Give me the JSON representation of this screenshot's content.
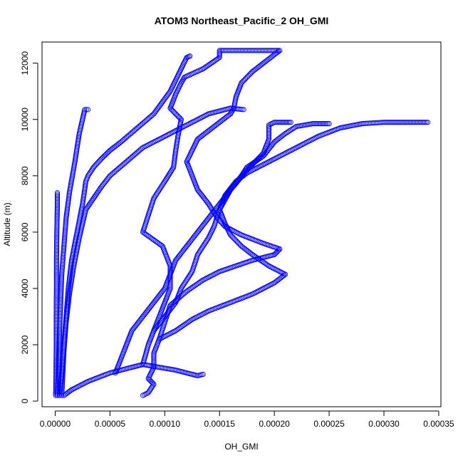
{
  "chart_data": {
    "type": "scatter",
    "title": "ATOM3 Northeast_Pacific_2 OH_GMI",
    "xlabel": "OH_GMI",
    "ylabel": "Altitude (m)",
    "xlim": [
      -1.2e-05,
      0.000352
    ],
    "ylim": [
      -200,
      12750
    ],
    "xticks": [
      0,
      5e-05,
      0.0001,
      0.00015,
      0.0002,
      0.00025,
      0.0003,
      0.00035
    ],
    "xtick_labels": [
      "0.00000",
      "0.00005",
      "0.00010",
      "0.00015",
      "0.00020",
      "0.00025",
      "0.00030",
      "0.00035"
    ],
    "yticks": [
      0,
      2000,
      4000,
      6000,
      8000,
      10000,
      12000
    ],
    "ytick_labels": [
      "0",
      "2000",
      "4000",
      "6000",
      "8000",
      "10000",
      "12000"
    ],
    "marker": "open-circle",
    "color": "#0000ff",
    "grid": false,
    "series": [
      {
        "name": "",
        "points": [
          [
            5e-07,
            200
          ],
          [
            8e-07,
            1000
          ],
          [
            1e-06,
            2000
          ],
          [
            1e-06,
            3000
          ],
          [
            1.2e-06,
            4000
          ],
          [
            1.2e-06,
            5000
          ],
          [
            1.5e-06,
            6000
          ],
          [
            2e-06,
            7000
          ],
          [
            2e-06,
            7400
          ]
        ]
      },
      {
        "name": "",
        "points": [
          [
            2e-06,
            200
          ],
          [
            3e-06,
            1200
          ],
          [
            4e-06,
            2500
          ],
          [
            5e-06,
            3500
          ],
          [
            6e-06,
            4500
          ],
          [
            8e-06,
            5500
          ],
          [
            1e-05,
            6500
          ],
          [
            1.3e-05,
            7400
          ],
          [
            1.8e-05,
            8500
          ],
          [
            2.2e-05,
            9500
          ],
          [
            2.7e-05,
            10350
          ],
          [
            3e-05,
            10350
          ]
        ]
      },
      {
        "name": "",
        "points": [
          [
            4e-06,
            200
          ],
          [
            6e-06,
            1000
          ],
          [
            8e-06,
            2000
          ],
          [
            1e-05,
            3000
          ],
          [
            1.2e-05,
            4000
          ],
          [
            1.5e-05,
            5000
          ],
          [
            2e-05,
            6000
          ],
          [
            2.5e-05,
            7000
          ],
          [
            2.8e-05,
            7800
          ],
          [
            3e-05,
            8000
          ],
          [
            3.5e-05,
            8300
          ],
          [
            4.2e-05,
            8600
          ],
          [
            5e-05,
            8900
          ],
          [
            6e-05,
            9200
          ],
          [
            7.5e-05,
            9700
          ],
          [
            9e-05,
            10200
          ],
          [
            0.000105,
            11000
          ],
          [
            0.000115,
            11800
          ],
          [
            0.00012,
            12200
          ],
          [
            0.000123,
            12250
          ]
        ]
      },
      {
        "name": "",
        "points": [
          [
            6e-06,
            200
          ],
          [
            7e-06,
            1000
          ],
          [
            8e-06,
            1800
          ],
          [
            1e-05,
            2800
          ],
          [
            1.3e-05,
            3800
          ],
          [
            1.7e-05,
            4800
          ],
          [
            2.2e-05,
            5800
          ],
          [
            2.8e-05,
            6800
          ],
          [
            3.5e-05,
            7200
          ],
          [
            4.2e-05,
            7600
          ],
          [
            5e-05,
            8000
          ],
          [
            6.5e-05,
            8500
          ],
          [
            8e-05,
            9000
          ],
          [
            0.0001,
            9400
          ],
          [
            0.00012,
            9800
          ],
          [
            0.00014,
            10200
          ],
          [
            0.00016,
            10400
          ],
          [
            0.000172,
            10350
          ]
        ]
      },
      {
        "name": "",
        "points": [
          [
            8e-06,
            200
          ],
          [
            1.5e-05,
            400
          ],
          [
            3e-05,
            700
          ],
          [
            5e-05,
            1000
          ],
          [
            8e-05,
            1300
          ],
          [
            0.00011,
            1100
          ],
          [
            0.00013,
            900
          ],
          [
            0.000135,
            950
          ]
        ]
      },
      {
        "name": "",
        "points": [
          [
            8e-05,
            200
          ],
          [
            8.5e-05,
            300
          ],
          [
            9e-05,
            600
          ],
          [
            8.5e-05,
            800
          ],
          [
            9e-05,
            1200
          ],
          [
            9e-05,
            1700
          ],
          [
            9.5e-05,
            2200
          ],
          [
            0.00011,
            2500
          ],
          [
            0.000125,
            2900
          ],
          [
            0.00014,
            3200
          ],
          [
            0.00016,
            3500
          ],
          [
            0.00018,
            3800
          ],
          [
            0.0002,
            4200
          ],
          [
            0.00021,
            4500
          ],
          [
            0.000195,
            4800
          ],
          [
            0.00018,
            5200
          ],
          [
            0.00017,
            5500
          ],
          [
            0.00016,
            5900
          ],
          [
            0.000155,
            6300
          ],
          [
            0.00015,
            6800
          ],
          [
            0.000155,
            7300
          ],
          [
            0.000165,
            7800
          ],
          [
            0.000175,
            8100
          ],
          [
            0.0002,
            8600
          ],
          [
            0.00022,
            9000
          ],
          [
            0.00024,
            9400
          ],
          [
            0.00026,
            9700
          ],
          [
            0.00028,
            9850
          ],
          [
            0.0003,
            9900
          ],
          [
            0.00034,
            9900
          ]
        ]
      },
      {
        "name": "",
        "points": [
          [
            5.5e-05,
            1000
          ],
          [
            6e-05,
            1500
          ],
          [
            6.5e-05,
            2000
          ],
          [
            7e-05,
            2500
          ],
          [
            8e-05,
            3000
          ],
          [
            9e-05,
            3500
          ],
          [
            0.0001,
            4000
          ],
          [
            0.000105,
            4500
          ],
          [
            0.00011,
            5000
          ],
          [
            0.00012,
            5500
          ],
          [
            0.00013,
            6000
          ],
          [
            0.00014,
            6500
          ],
          [
            0.00015,
            7000
          ],
          [
            0.00016,
            7500
          ],
          [
            0.00017,
            8000
          ],
          [
            0.000175,
            8300
          ],
          [
            0.00019,
            8700
          ],
          [
            0.0002,
            9200
          ],
          [
            0.00021,
            9500
          ],
          [
            0.00022,
            9750
          ],
          [
            0.000235,
            9850
          ],
          [
            0.00025,
            9850
          ]
        ]
      },
      {
        "name": "",
        "points": [
          [
            8e-05,
            1300
          ],
          [
            8.5e-05,
            2000
          ],
          [
            9e-05,
            2500
          ],
          [
            0.0001,
            3000
          ],
          [
            0.00011,
            3500
          ],
          [
            0.000115,
            4000
          ],
          [
            0.000125,
            4600
          ],
          [
            0.00013,
            5200
          ],
          [
            0.00014,
            5800
          ],
          [
            0.000145,
            6200
          ],
          [
            0.00015,
            6800
          ],
          [
            0.00016,
            7500
          ],
          [
            0.000175,
            8200
          ],
          [
            0.00019,
            8800
          ],
          [
            0.000195,
            9300
          ],
          [
            0.000195,
            9800
          ],
          [
            0.0002,
            9900
          ],
          [
            0.000215,
            9900
          ]
        ]
      },
      {
        "name": "",
        "points": [
          [
            9e-05,
            2500
          ],
          [
            9.5e-05,
            3000
          ],
          [
            0.0001,
            3500
          ],
          [
            0.000105,
            4000
          ],
          [
            0.000105,
            4800
          ],
          [
            9.8e-05,
            5500
          ],
          [
            8e-05,
            6000
          ],
          [
            8.5e-05,
            6600
          ],
          [
            9e-05,
            7200
          ],
          [
            0.0001,
            7800
          ],
          [
            0.000108,
            8300
          ],
          [
            0.00011,
            8900
          ],
          [
            0.000112,
            9400
          ],
          [
            0.000115,
            10000
          ],
          [
            0.000105,
            10400
          ],
          [
            0.00011,
            10900
          ],
          [
            0.000115,
            11300
          ],
          [
            0.000118,
            11500
          ],
          [
            0.000135,
            11800
          ],
          [
            0.00015,
            12200
          ],
          [
            0.00015,
            12450
          ],
          [
            0.00018,
            12450
          ],
          [
            0.000205,
            12450
          ],
          [
            0.0002,
            12300
          ],
          [
            0.00019,
            12000
          ],
          [
            0.00018,
            11700
          ],
          [
            0.00017,
            11300
          ],
          [
            0.000165,
            10800
          ],
          [
            0.000163,
            10400
          ],
          [
            0.00016,
            10200
          ],
          [
            0.00015,
            9900
          ],
          [
            0.00014,
            9600
          ],
          [
            0.00013,
            9300
          ],
          [
            0.000125,
            8900
          ],
          [
            0.00012,
            8500
          ],
          [
            0.000125,
            8000
          ],
          [
            0.00013,
            7500
          ],
          [
            0.00014,
            7000
          ],
          [
            0.000148,
            6500
          ],
          [
            0.000155,
            6200
          ],
          [
            0.00017,
            5900
          ],
          [
            0.00019,
            5600
          ],
          [
            0.000205,
            5400
          ],
          [
            0.0002,
            5200
          ],
          [
            0.00018,
            5000
          ],
          [
            0.000165,
            4800
          ],
          [
            0.00015,
            4600
          ],
          [
            0.000135,
            4300
          ],
          [
            0.00012,
            3900
          ],
          [
            0.000105,
            3400
          ],
          [
            0.0001,
            2800
          ],
          [
            9.5e-05,
            2200
          ]
        ]
      }
    ]
  }
}
